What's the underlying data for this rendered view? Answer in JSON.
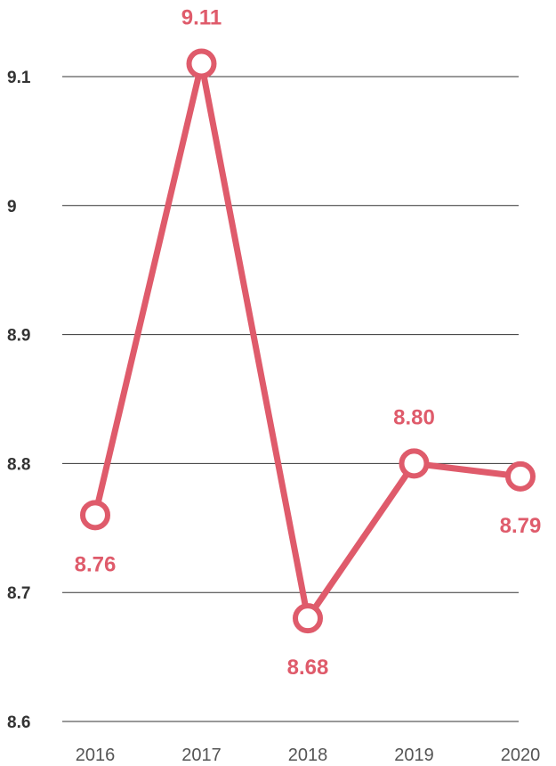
{
  "chart_data": {
    "type": "line",
    "categories": [
      "2016",
      "2017",
      "2018",
      "2019",
      "2020"
    ],
    "series": [
      {
        "values": [
          8.76,
          9.11,
          8.68,
          8.8,
          8.79
        ]
      }
    ],
    "data_labels": [
      "8.76",
      "9.11",
      "8.68",
      "8.80",
      "8.79"
    ],
    "label_positions": [
      "below",
      "above",
      "below",
      "above",
      "below"
    ],
    "ylim": [
      8.6,
      9.1
    ],
    "yticks": [
      8.6,
      8.7,
      8.8,
      8.9,
      9.0,
      9.1
    ],
    "ytick_labels": [
      "8.6",
      "8.7",
      "8.8",
      "8.9",
      "9",
      "9.1"
    ],
    "grid": true,
    "legend": "none",
    "colors": {
      "line": "#df5b6b",
      "marker_fill": "#ffffff",
      "grid": "#333333",
      "label": "#df5b6b"
    }
  }
}
